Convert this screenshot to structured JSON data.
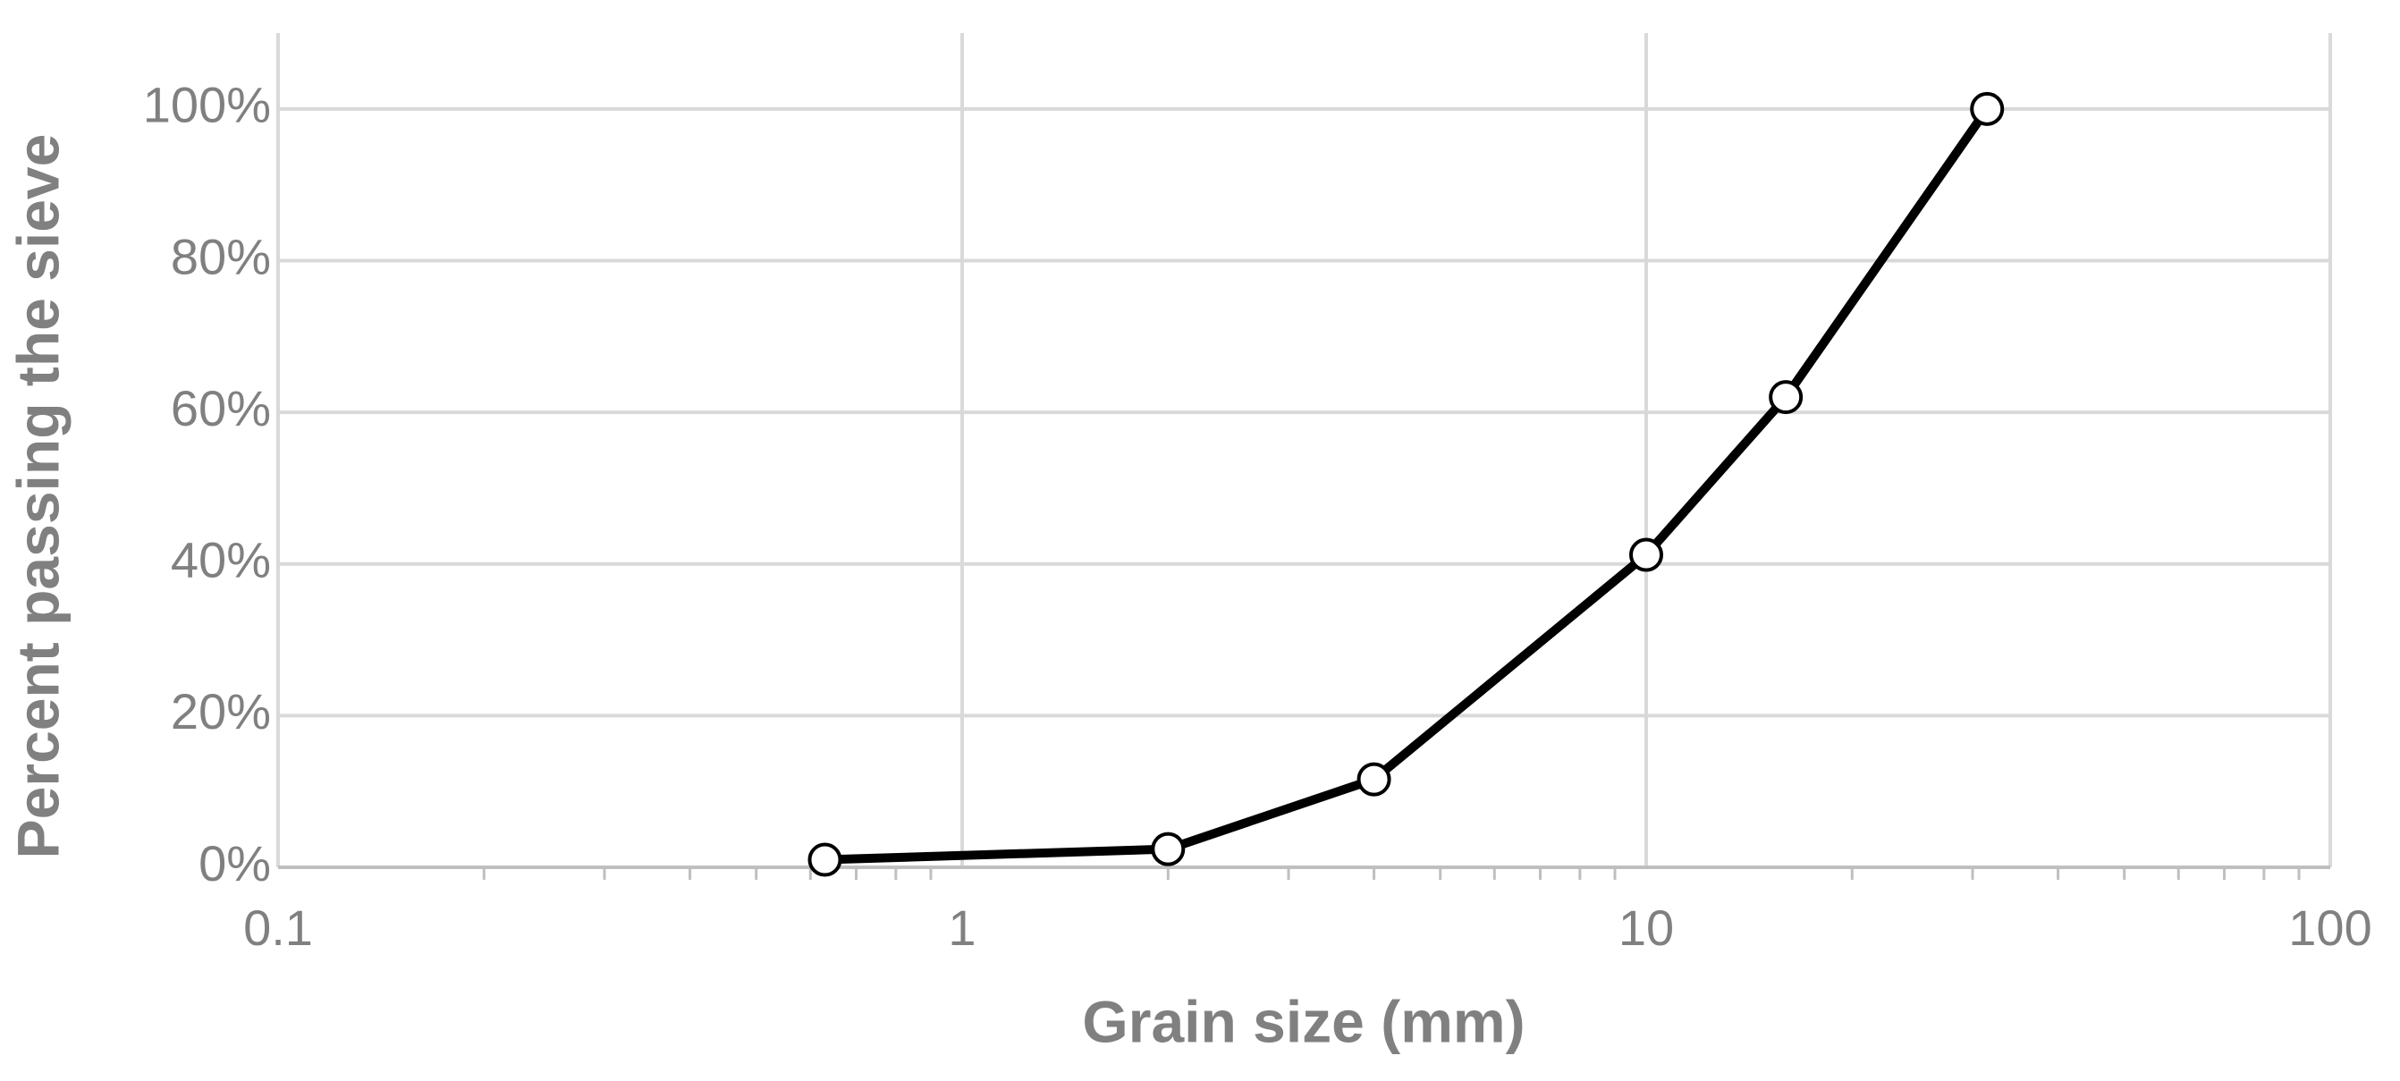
{
  "chart_data": {
    "type": "line",
    "x_label": "Grain size (mm)",
    "y_label": "Percent passing the sieve",
    "x": [
      0.63,
      2,
      4,
      10,
      16,
      31.5
    ],
    "series": [
      {
        "color": "#000000",
        "values": [
          1,
          2.4,
          11.6,
          41.2,
          62,
          100
        ]
      }
    ],
    "x_log_scale": true,
    "xlim": [
      0.1,
      100
    ],
    "xticks": [
      0.1,
      1,
      10,
      100
    ],
    "minor_ticks": true,
    "ylim": [
      0,
      110
    ],
    "yticks": [
      {
        "value": 0,
        "label": "0%"
      },
      {
        "value": 20,
        "label": "20%"
      },
      {
        "value": 40,
        "label": "40%"
      },
      {
        "value": 60,
        "label": "60%"
      },
      {
        "value": 80,
        "label": "80%"
      },
      {
        "value": 100,
        "label": "100%"
      }
    ],
    "grid": true
  }
}
